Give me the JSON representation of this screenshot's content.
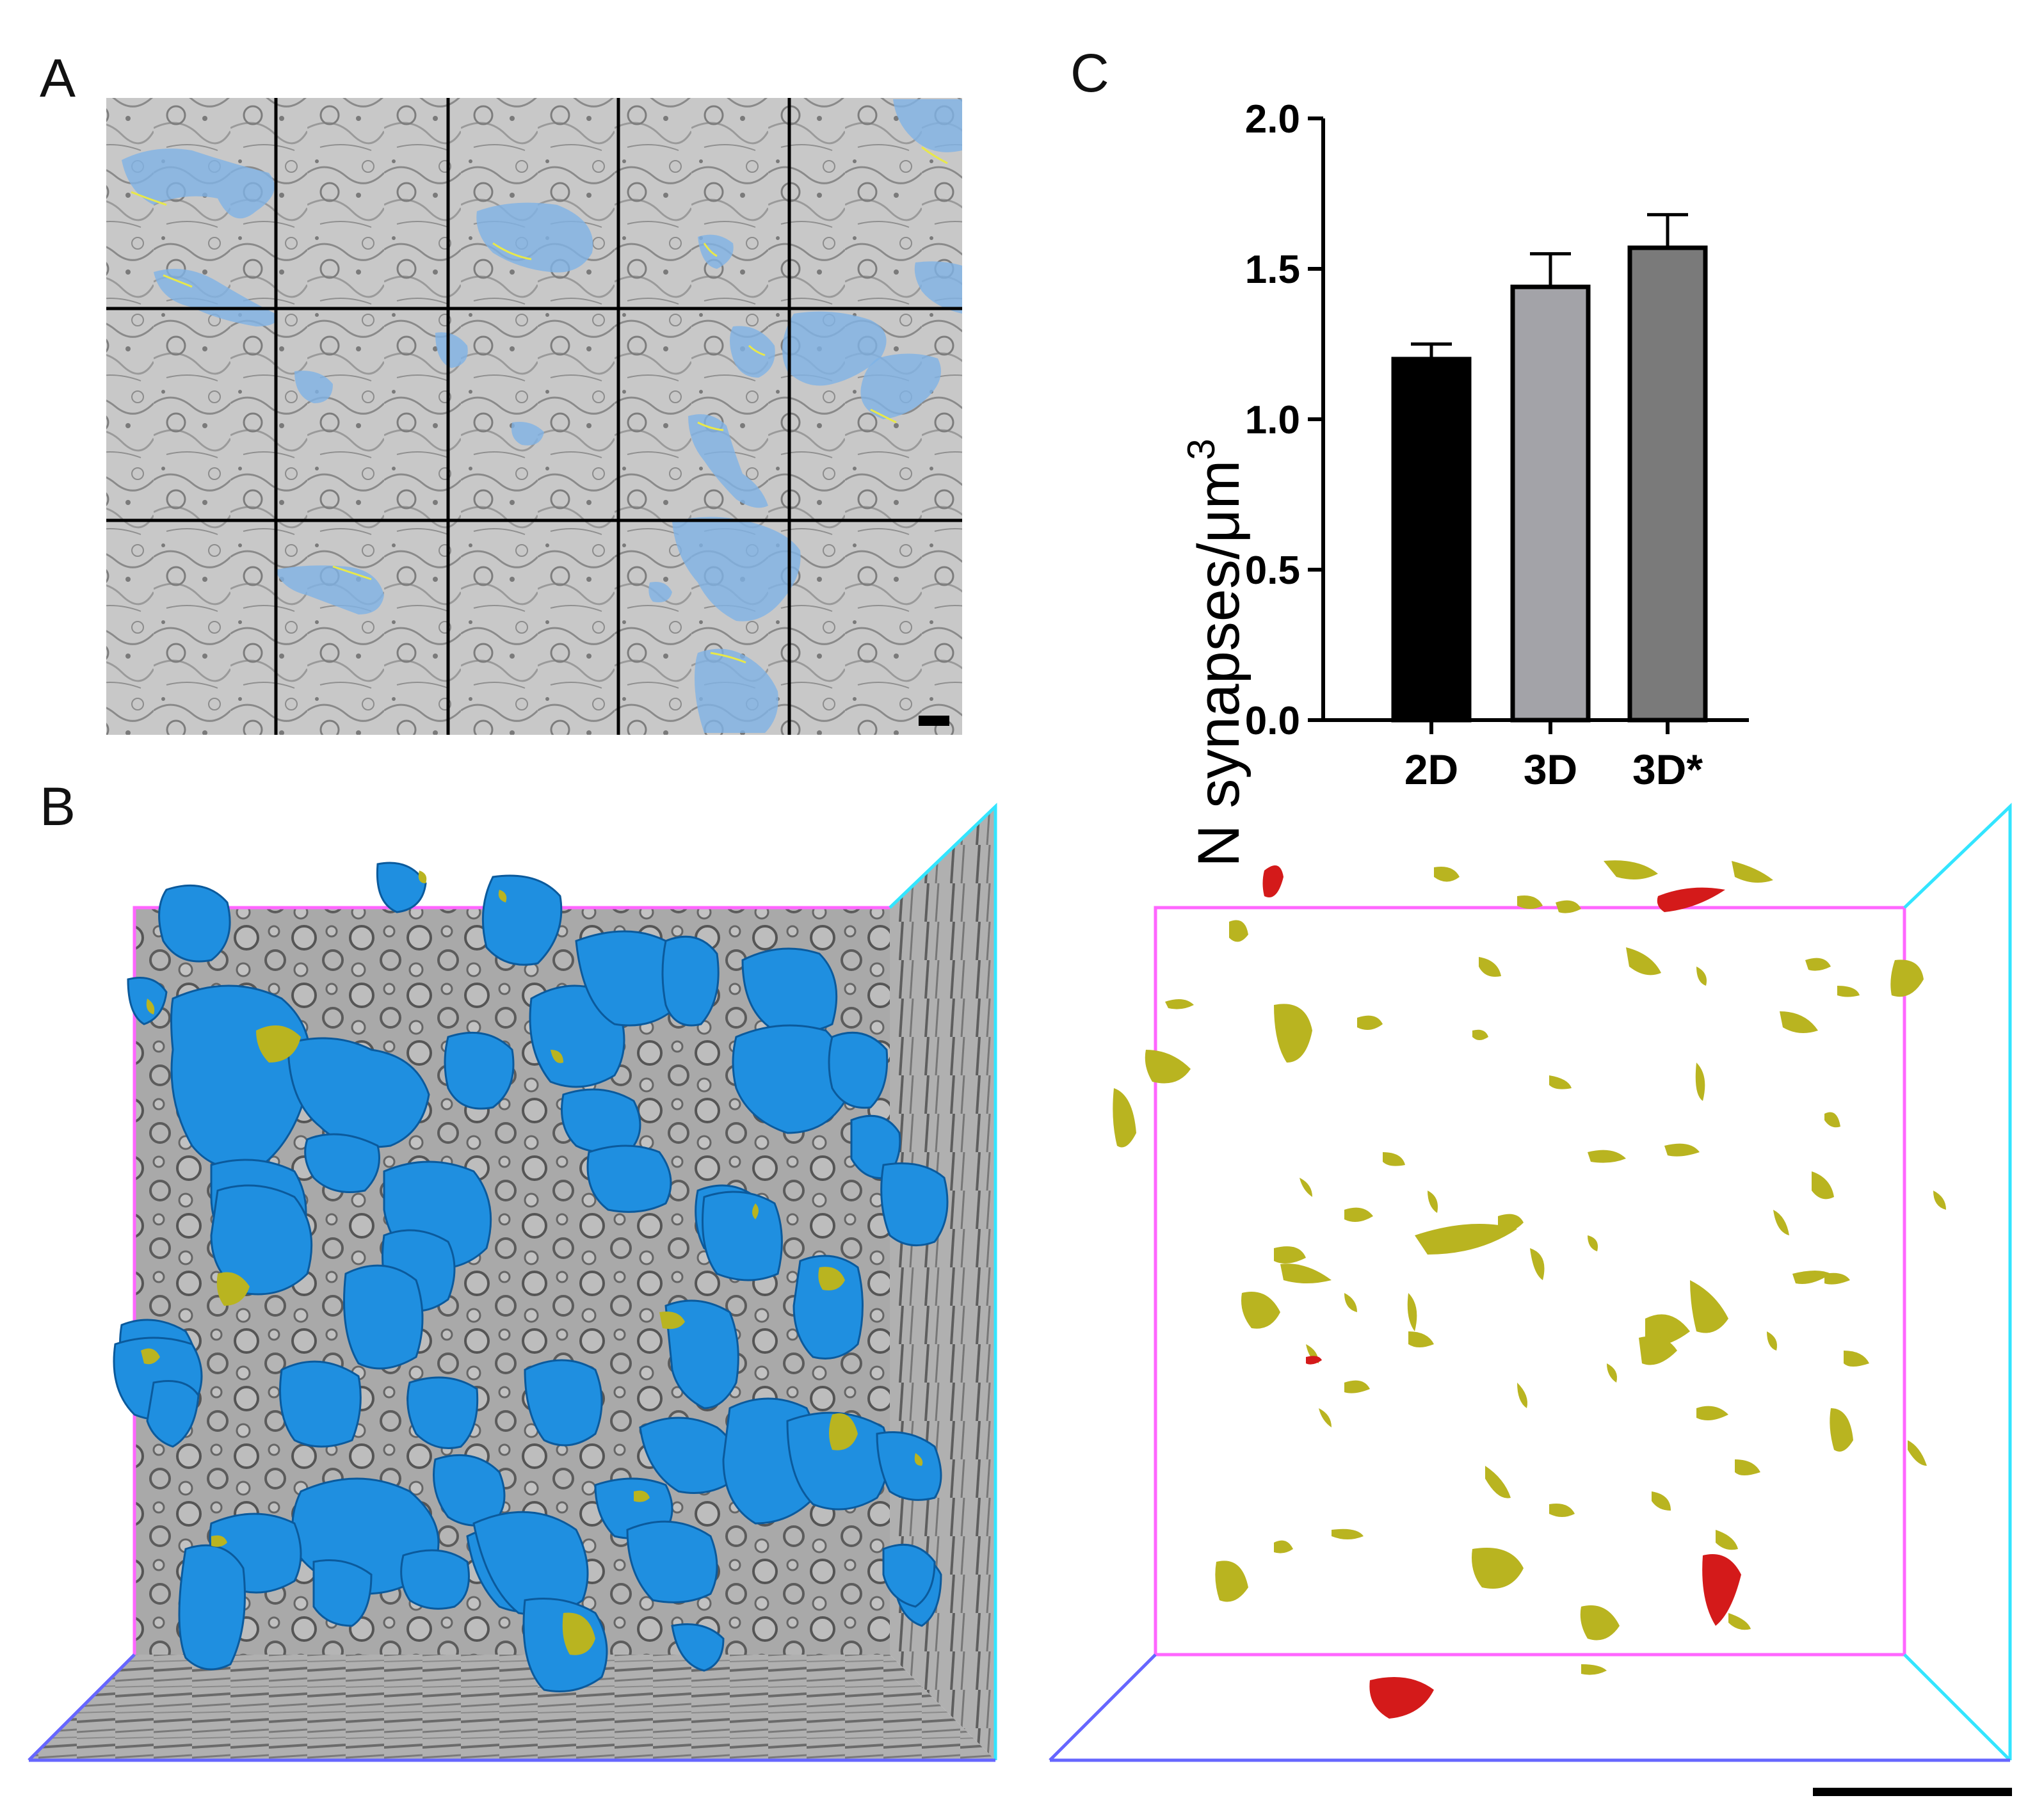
{
  "panels": {
    "a": {
      "letter": "A"
    },
    "b": {
      "letter": "B"
    },
    "c": {
      "letter": "C"
    }
  },
  "colors": {
    "em_background": "#c9c9c9",
    "grid_line": "#000000",
    "postsynaptic_blue_overlay": "#7fb3e6",
    "synapse_yellow_line": "#e8e84a",
    "rendered_blue": "#1f8fe0",
    "synapse_yellow": "#b9b420",
    "synapse_red": "#d41a1a",
    "box_magenta": "#ff66ff",
    "box_cyan": "#33e5ff",
    "box_blue": "#6666ff",
    "bar_2d": "#000000",
    "bar_3d": "#a3a3a8",
    "bar_3dstar": "#7a7a7a"
  },
  "chart_data": {
    "type": "bar",
    "categories": [
      "2D",
      "3D",
      "3D*"
    ],
    "values": [
      1.2,
      1.44,
      1.57
    ],
    "errors": [
      0.05,
      0.11,
      0.11
    ],
    "ylabel_main": "N synapses/",
    "ylabel_unit": "μm",
    "ylabel_sup": "3",
    "ylim": [
      0,
      2.0
    ],
    "yticks": [
      "0.0",
      "0.5",
      "1.0",
      "1.5",
      "2.0"
    ],
    "grid": false,
    "legend": "none"
  }
}
